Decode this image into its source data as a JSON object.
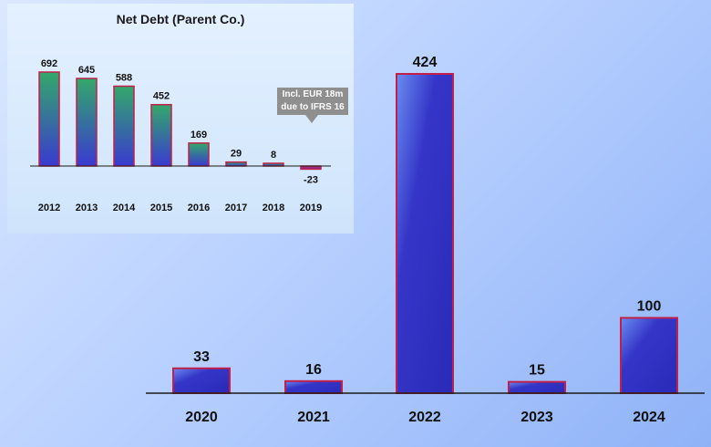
{
  "chart_data": [
    {
      "type": "bar",
      "categories": [
        "2020",
        "2021",
        "2022",
        "2023",
        "2024"
      ],
      "values": [
        33,
        16,
        424,
        15,
        100
      ],
      "colors": {
        "bar_fill": "#3535c8",
        "bar_border": "#c0204a"
      }
    },
    {
      "type": "bar",
      "title": "Net Debt (Parent Co.)",
      "categories": [
        "2012",
        "2013",
        "2014",
        "2015",
        "2016",
        "2017",
        "2018",
        "2019"
      ],
      "values": [
        692,
        645,
        588,
        452,
        169,
        29,
        8,
        -23
      ],
      "annotation": "Incl. EUR 18m due to IFRS 16",
      "colors": {
        "bar_fill_top": "#33a86a",
        "bar_fill_bottom": "#3a3ad0",
        "bar_border": "#c0204a",
        "callout": "#8f8f8f"
      }
    }
  ],
  "inset": {
    "title": "Net Debt (Parent Co.)",
    "callout_line1": "Incl. EUR 18m",
    "callout_line2": "due to IFRS 16"
  }
}
